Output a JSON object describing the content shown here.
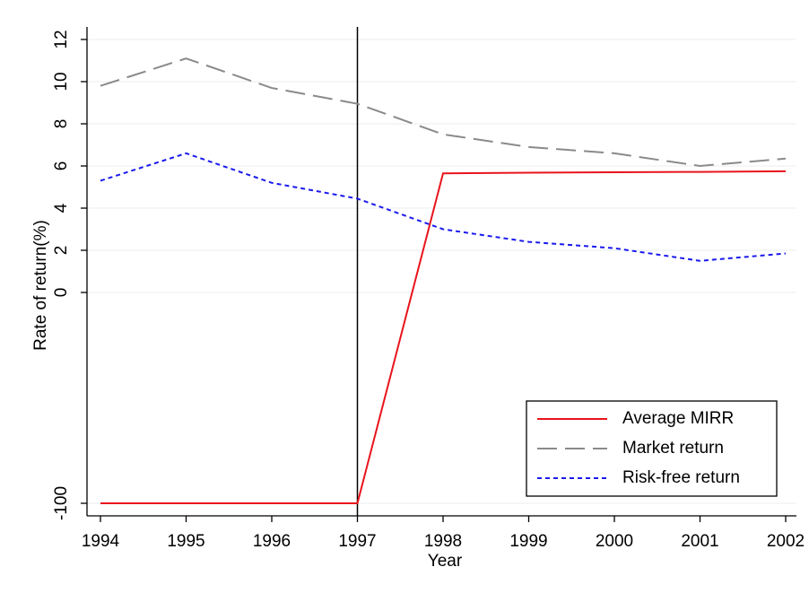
{
  "chart_data": {
    "type": "line",
    "x_label": "Year",
    "y_label": "Rate of return(%)",
    "x": [
      1994,
      1995,
      1996,
      1997,
      1998,
      1999,
      2000,
      2001,
      2002
    ],
    "xlim": [
      1994,
      2002
    ],
    "xticks": [
      1994,
      1995,
      1996,
      1997,
      1998,
      1999,
      2000,
      2001,
      2002
    ],
    "ylim": [
      -100,
      12
    ],
    "yticks": [
      -100,
      0,
      2,
      4,
      6,
      8,
      10,
      12
    ],
    "grid": true,
    "reference_line_x": 1997,
    "legend": "lower-right",
    "series": [
      {
        "name": "Average MIRR",
        "color": "#e8141c",
        "dash": "solid",
        "values": [
          -100,
          -100,
          -100,
          -100,
          5.65,
          5.68,
          5.7,
          5.72,
          5.75
        ]
      },
      {
        "name": "Market return",
        "color": "#8a8a8a",
        "dash": "long",
        "values": [
          9.8,
          11.1,
          9.7,
          8.95,
          7.5,
          6.9,
          6.6,
          6.0,
          6.35
        ]
      },
      {
        "name": "Risk-free return",
        "color": "#1a1aee",
        "dash": "short",
        "values": [
          5.3,
          6.6,
          5.2,
          4.45,
          3.0,
          2.4,
          2.1,
          1.5,
          1.85
        ]
      }
    ]
  }
}
